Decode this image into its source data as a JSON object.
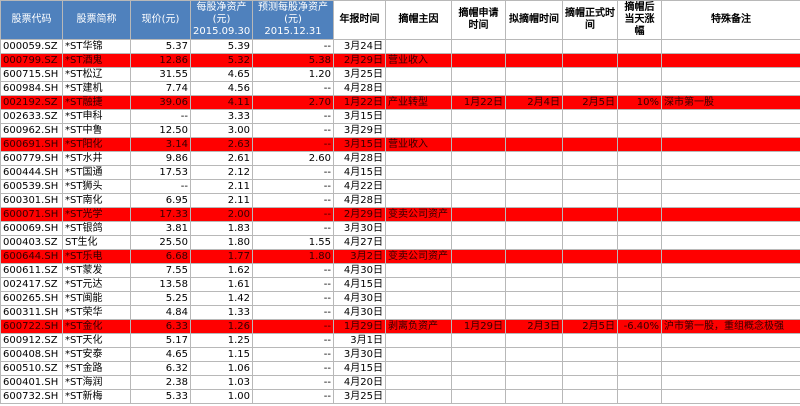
{
  "table": {
    "headers": [
      {
        "title": "股票代码"
      },
      {
        "title": "股票简称"
      },
      {
        "title": "现价(元)"
      },
      {
        "title": "每股净资产(元)",
        "date": "2015.09.30"
      },
      {
        "title": "预测每股净资产(元)",
        "date": "2015.12.31"
      },
      {
        "title": "年报时间"
      },
      {
        "title": "摘帽主因"
      },
      {
        "title": "摘帽申请时间"
      },
      {
        "title": "拟摘帽时间"
      },
      {
        "title": "摘帽正式时间"
      },
      {
        "title": "摘帽后当天涨幅"
      },
      {
        "title": "特殊备注"
      }
    ],
    "rows": [
      {
        "cells": [
          "000059.SZ",
          "*ST华锦",
          "5.37",
          "5.39",
          "--",
          "3月24日"
        ]
      },
      {
        "highlight": true,
        "cells": [
          "000799.SZ",
          "*ST酒鬼",
          "12.86",
          "5.32",
          "5.38",
          "2月29日",
          "营业收入"
        ]
      },
      {
        "cells": [
          "600715.SH",
          "*ST松辽",
          "31.55",
          "4.65",
          "1.20",
          "3月25日"
        ]
      },
      {
        "cells": [
          "600984.SH",
          "*ST建机",
          "7.74",
          "4.56",
          "--",
          "4月28日"
        ]
      },
      {
        "highlight": true,
        "cells": [
          "002192.SZ",
          "*ST融捷",
          "39.06",
          "4.11",
          "2.70",
          "1月22日",
          "产业转型",
          "1月22日",
          "2月4日",
          "2月5日",
          "10%",
          "深市第一股"
        ]
      },
      {
        "cells": [
          "002633.SZ",
          "*ST申科",
          "--",
          "3.33",
          "--",
          "3月15日"
        ]
      },
      {
        "cells": [
          "600962.SH",
          "*ST中鲁",
          "12.50",
          "3.00",
          "--",
          "3月29日"
        ]
      },
      {
        "highlight": true,
        "cells": [
          "600691.SH",
          "*ST阳化",
          "3.14",
          "2.63",
          "--",
          "3月15日",
          "营业收入"
        ]
      },
      {
        "cells": [
          "600779.SH",
          "*ST水井",
          "9.86",
          "2.61",
          "2.60",
          "4月28日"
        ]
      },
      {
        "cells": [
          "600444.SH",
          "*ST国通",
          "17.53",
          "2.12",
          "--",
          "4月15日"
        ]
      },
      {
        "cells": [
          "600539.SH",
          "*ST狮头",
          "--",
          "2.11",
          "--",
          "4月22日"
        ]
      },
      {
        "cells": [
          "600301.SH",
          "*ST南化",
          "6.95",
          "2.11",
          "--",
          "4月28日"
        ]
      },
      {
        "highlight": true,
        "cells": [
          "600071.SH",
          "*ST光学",
          "17.33",
          "2.00",
          "--",
          "2月29日",
          "变卖公司资产"
        ]
      },
      {
        "cells": [
          "600069.SH",
          "*ST银鸽",
          "3.81",
          "1.83",
          "--",
          "3月30日"
        ]
      },
      {
        "cells": [
          "000403.SZ",
          "ST生化",
          "25.50",
          "1.80",
          "1.55",
          "4月27日"
        ]
      },
      {
        "highlight": true,
        "cells": [
          "600644.SH",
          "*ST乐电",
          "6.68",
          "1.77",
          "1.80",
          "3月2日",
          "变卖公司资产"
        ]
      },
      {
        "cells": [
          "600611.SZ",
          "*ST蒙发",
          "7.55",
          "1.62",
          "--",
          "4月30日"
        ]
      },
      {
        "cells": [
          "002417.SZ",
          "*ST元达",
          "13.58",
          "1.61",
          "--",
          "4月15日"
        ]
      },
      {
        "cells": [
          "600265.SH",
          "*ST闽能",
          "5.25",
          "1.42",
          "--",
          "4月30日"
        ]
      },
      {
        "cells": [
          "600311.SH",
          "*ST荣华",
          "4.84",
          "1.33",
          "--",
          "4月30日"
        ]
      },
      {
        "highlight": true,
        "cells": [
          "600722.SH",
          "*ST金化",
          "6.33",
          "1.26",
          "--",
          "1月29日",
          "剥离负资产",
          "1月29日",
          "2月3日",
          "2月5日",
          "-6.40%",
          "沪市第一股，重组概念极强"
        ]
      },
      {
        "cells": [
          "600912.SZ",
          "*ST天化",
          "5.17",
          "1.25",
          "--",
          "3月1日"
        ]
      },
      {
        "cells": [
          "600408.SH",
          "*ST安泰",
          "4.65",
          "1.15",
          "--",
          "3月30日"
        ]
      },
      {
        "cells": [
          "600510.SZ",
          "*ST金路",
          "6.32",
          "1.06",
          "--",
          "4月15日"
        ]
      },
      {
        "cells": [
          "600401.SH",
          "*ST海润",
          "2.38",
          "1.03",
          "--",
          "4月20日"
        ]
      },
      {
        "cells": [
          "600732.SH",
          "*ST新梅",
          "5.33",
          "1.00",
          "--",
          "3月25日"
        ]
      }
    ]
  }
}
